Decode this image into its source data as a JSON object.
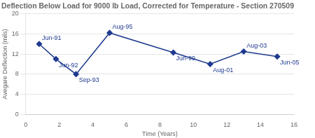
{
  "chart_data": {
    "type": "line",
    "title": "Deflection Below Load for 9000 lb Load, Corrected for Temperature - Section 270509",
    "xlabel": "Time (Years)",
    "ylabel": "Avegare Deflection (mils)",
    "x": [
      0.8,
      1.8,
      3.0,
      5.0,
      8.8,
      11.0,
      13.0,
      15.0
    ],
    "values": [
      14.0,
      11.0,
      8.0,
      16.2,
      12.3,
      10.0,
      12.5,
      11.5
    ],
    "annotations": [
      "Jun-91",
      "Jun-92",
      "Sep-93",
      "Aug-95",
      "Jun-99",
      "Aug-01",
      "Aug-03",
      "Jun-05"
    ],
    "color": "#1F3A8F",
    "marker": "diamond",
    "xlim": [
      0,
      16
    ],
    "ylim": [
      0,
      20
    ],
    "xticks": [
      0,
      2,
      4,
      6,
      8,
      10,
      12,
      14,
      16
    ],
    "yticks": [
      0,
      4,
      8,
      12,
      16,
      20
    ],
    "grid": "y"
  }
}
